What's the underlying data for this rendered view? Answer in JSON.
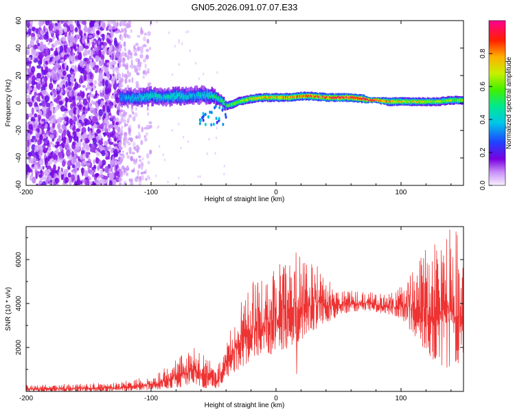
{
  "title": "GN05.2026.091.07.07.E33",
  "colorbar": {
    "label": "Normalized spectral amplitude",
    "ticks": [
      0.0,
      0.2,
      0.4,
      0.6,
      0.8
    ],
    "tick_labels": [
      "0.0",
      "0.2",
      "0.4",
      "0.6",
      "0.8"
    ],
    "range": [
      0,
      1
    ]
  },
  "chart_data": [
    {
      "type": "heatmap",
      "name": "spectrogram",
      "title": "GN05.2026.091.07.07.E33",
      "xlabel": "Height of straight line (km)",
      "ylabel": "Frequency (Hz)",
      "xlim": [
        -200,
        150
      ],
      "ylim": [
        -60,
        60
      ],
      "x_ticks": [
        -200,
        -100,
        0,
        100
      ],
      "x_tick_labels": [
        "-200",
        "-100",
        "0",
        "100"
      ],
      "y_ticks": [
        -60,
        -40,
        -20,
        0,
        20,
        40,
        60
      ],
      "y_tick_labels": [
        "-60",
        "-40",
        "-20",
        "0",
        "20",
        "40",
        "60"
      ],
      "colorscale": "rainbow (purple=0, blue, cyan, green, yellow, red, magenta=1)",
      "features": [
        {
          "description": "broadband noise",
          "x_range": [
            -200,
            -125
          ],
          "freq_range": [
            -60,
            60
          ],
          "amplitude": 0.1
        },
        {
          "description": "scattered weak noise",
          "x_range": [
            -125,
            -100
          ],
          "freq_range": [
            -60,
            60
          ],
          "amplitude": 0.05
        }
      ],
      "ridge": {
        "x": [
          -125,
          -110,
          -100,
          -90,
          -80,
          -70,
          -60,
          -50,
          -45,
          -40,
          -35,
          -30,
          -20,
          -10,
          0,
          10,
          20,
          30,
          40,
          50,
          60,
          70,
          75,
          80,
          90,
          100,
          110,
          120,
          130,
          140,
          150
        ],
        "freq": [
          4,
          4,
          5,
          4,
          5,
          5,
          6,
          5,
          3,
          -2,
          -1,
          1,
          3,
          4,
          4,
          4,
          5,
          5,
          4,
          4,
          4,
          3,
          2,
          2,
          1,
          1,
          1,
          1,
          1,
          2,
          2
        ],
        "halfwidth_hz": [
          6,
          6,
          6,
          6,
          6,
          6,
          6,
          5,
          4,
          3,
          3,
          3,
          3,
          3,
          3,
          3,
          3,
          3,
          3,
          3,
          3,
          3,
          2,
          2,
          3,
          3,
          3,
          3,
          3,
          3,
          3
        ],
        "peak_amplitude": [
          0.35,
          0.4,
          0.45,
          0.4,
          0.45,
          0.4,
          0.4,
          0.5,
          0.5,
          0.55,
          0.6,
          0.65,
          0.7,
          0.75,
          0.75,
          0.8,
          0.8,
          0.85,
          0.85,
          0.9,
          0.9,
          0.95,
          1.0,
          0.95,
          0.75,
          0.7,
          0.7,
          0.7,
          0.65,
          0.65,
          0.65
        ]
      }
    },
    {
      "type": "line",
      "name": "snr",
      "xlabel": "Height of straight line (km)",
      "ylabel": "SNR (10 * v/v)",
      "xlim": [
        -200,
        150
      ],
      "ylim": [
        0,
        7500
      ],
      "x_ticks": [
        -200,
        -100,
        0,
        100
      ],
      "x_tick_labels": [
        "-200",
        "-100",
        "0",
        "100"
      ],
      "y_ticks": [
        2000,
        4000,
        6000
      ],
      "y_tick_labels": [
        "2000",
        "4000",
        "6000"
      ],
      "color": "#ee3333",
      "envelope": {
        "x": [
          -200,
          -160,
          -130,
          -110,
          -95,
          -85,
          -75,
          -65,
          -55,
          -47,
          -40,
          -30,
          -20,
          -10,
          0,
          10,
          20,
          30,
          40,
          50,
          60,
          70,
          80,
          90,
          100,
          110,
          120,
          130,
          140,
          150
        ],
        "min": [
          0,
          0,
          0,
          50,
          100,
          150,
          200,
          200,
          150,
          100,
          600,
          1000,
          1200,
          1500,
          1800,
          2000,
          2300,
          2800,
          3000,
          3500,
          3600,
          3700,
          3600,
          3500,
          3300,
          2600,
          1800,
          1200,
          1000,
          1500
        ],
        "max": [
          300,
          350,
          400,
          600,
          800,
          1300,
          1800,
          2000,
          1600,
          1000,
          2800,
          3800,
          5000,
          5500,
          5800,
          6200,
          6500,
          6000,
          5200,
          4800,
          4600,
          4600,
          4500,
          4400,
          4800,
          5500,
          6500,
          7300,
          7500,
          7000
        ]
      }
    }
  ]
}
